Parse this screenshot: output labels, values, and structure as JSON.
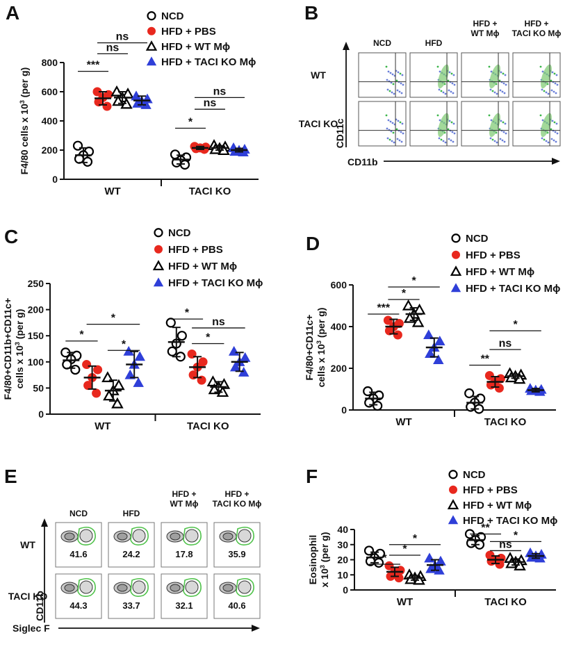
{
  "colors": {
    "ncd": "#000000",
    "pbs": "#e8281e",
    "wt_mphi": "#000000",
    "taci_mphi": "#2f3fd8"
  },
  "legend": {
    "labels": [
      "NCD",
      "HFD + PBS",
      "HFD + WT Mϕ",
      "HFD + TACI KO Mϕ"
    ],
    "markers": [
      "circle-open",
      "circle-filled",
      "triangle-open",
      "triangle-filled"
    ]
  },
  "chart_data": [
    {
      "panel": "A",
      "type": "scatter",
      "ylabel": "F4/80 cells x 10³ (per g)",
      "ylim": [
        0,
        800
      ],
      "yticks": [
        "0",
        "200",
        "400",
        "600",
        "800"
      ],
      "groups": [
        "WT",
        "TACI KO"
      ],
      "series": [
        {
          "group": "WT",
          "condition": "NCD",
          "mean": 165,
          "sd": 50,
          "points": [
            230,
            190,
            165,
            140,
            120
          ]
        },
        {
          "group": "WT",
          "condition": "HFD + PBS",
          "mean": 555,
          "sd": 45,
          "points": [
            600,
            580,
            560,
            530,
            500
          ]
        },
        {
          "group": "WT",
          "condition": "HFD + WT Mϕ",
          "mean": 560,
          "sd": 40,
          "points": [
            600,
            585,
            560,
            535,
            515
          ]
        },
        {
          "group": "WT",
          "condition": "HFD + TACI KO Mϕ",
          "mean": 540,
          "sd": 30,
          "points": [
            570,
            550,
            535,
            520,
            510
          ]
        },
        {
          "group": "TACI KO",
          "condition": "NCD",
          "mean": 135,
          "sd": 30,
          "points": [
            170,
            150,
            130,
            115,
            100
          ]
        },
        {
          "group": "TACI KO",
          "condition": "HFD + PBS",
          "mean": 215,
          "sd": 10,
          "points": [
            225,
            220,
            215,
            210,
            205
          ]
        },
        {
          "group": "TACI KO",
          "condition": "HFD + WT Mϕ",
          "mean": 215,
          "sd": 15,
          "points": [
            232,
            222,
            212,
            205,
            198
          ]
        },
        {
          "group": "TACI KO",
          "condition": "HFD + TACI KO Mϕ",
          "mean": 200,
          "sd": 12,
          "points": [
            215,
            205,
            198,
            190,
            186
          ]
        }
      ],
      "annotations": [
        {
          "group": "WT",
          "from": 0,
          "to": 1,
          "label": "***",
          "y": 740
        },
        {
          "group": "WT",
          "from": 1,
          "to": 2,
          "label": "ns",
          "y": 860
        },
        {
          "group": "WT",
          "from": 1,
          "to": 3,
          "label": "ns",
          "y": 935
        },
        {
          "group": "TACI KO",
          "from": 0,
          "to": 1,
          "label": "*",
          "y": 350
        },
        {
          "group": "TACI KO",
          "from": 1,
          "to": 2,
          "label": "ns",
          "y": 480
        },
        {
          "group": "TACI KO",
          "from": 1,
          "to": 3,
          "label": "ns",
          "y": 560
        }
      ]
    },
    {
      "panel": "C",
      "type": "scatter",
      "ylabel": "F4/80+CD11b+CD11c+ cells x 10³ (per g)",
      "ylim": [
        0,
        250
      ],
      "yticks": [
        "0",
        "50",
        "100",
        "150",
        "200",
        "250"
      ],
      "groups": [
        "WT",
        "TACI KO"
      ],
      "series": [
        {
          "group": "WT",
          "condition": "NCD",
          "mean": 103,
          "sd": 15,
          "points": [
            118,
            112,
            105,
            95,
            85
          ]
        },
        {
          "group": "WT",
          "condition": "HFD + PBS",
          "mean": 70,
          "sd": 22,
          "points": [
            95,
            85,
            70,
            55,
            40
          ]
        },
        {
          "group": "WT",
          "condition": "HFD + WT Mϕ",
          "mean": 45,
          "sd": 20,
          "points": [
            70,
            55,
            45,
            35,
            20
          ]
        },
        {
          "group": "WT",
          "condition": "HFD + TACI KO Mϕ",
          "mean": 95,
          "sd": 25,
          "points": [
            120,
            110,
            95,
            75,
            60
          ]
        },
        {
          "group": "TACI KO",
          "condition": "NCD",
          "mean": 138,
          "sd": 28,
          "points": [
            175,
            150,
            135,
            120,
            110
          ]
        },
        {
          "group": "TACI KO",
          "condition": "HFD + PBS",
          "mean": 90,
          "sd": 20,
          "points": [
            115,
            100,
            90,
            75,
            65
          ]
        },
        {
          "group": "TACI KO",
          "condition": "HFD + WT Mϕ",
          "mean": 52,
          "sd": 10,
          "points": [
            62,
            57,
            52,
            47,
            42
          ]
        },
        {
          "group": "TACI KO",
          "condition": "HFD + TACI KO Mϕ",
          "mean": 100,
          "sd": 18,
          "points": [
            120,
            108,
            100,
            90,
            80
          ]
        }
      ],
      "annotations": [
        {
          "group": "WT",
          "from": 0,
          "to": 1,
          "label": "*",
          "y": 140
        },
        {
          "group": "WT",
          "from": 2,
          "to": 3,
          "label": "*",
          "y": 122
        },
        {
          "group": "WT",
          "from": 1,
          "to": 3,
          "label": "*",
          "y": 172
        },
        {
          "group": "TACI KO",
          "from": 0,
          "to": 1,
          "label": "*",
          "y": 182
        },
        {
          "group": "TACI KO",
          "from": 1,
          "to": 2,
          "label": "*",
          "y": 135
        },
        {
          "group": "TACI KO",
          "from": 1,
          "to": 3,
          "label": "ns",
          "y": 165
        }
      ]
    },
    {
      "panel": "D",
      "type": "scatter",
      "ylabel": "F4/80+CD11c+ cells x 10³ (per g)",
      "ylim": [
        0,
        600
      ],
      "yticks": [
        "0",
        "200",
        "400",
        "600"
      ],
      "groups": [
        "WT",
        "TACI KO"
      ],
      "series": [
        {
          "group": "WT",
          "condition": "NCD",
          "mean": 55,
          "sd": 30,
          "points": [
            90,
            70,
            55,
            35,
            20
          ]
        },
        {
          "group": "WT",
          "condition": "HFD + PBS",
          "mean": 400,
          "sd": 35,
          "points": [
            430,
            415,
            400,
            380,
            360
          ]
        },
        {
          "group": "WT",
          "condition": "HFD + WT Mϕ",
          "mean": 460,
          "sd": 30,
          "points": [
            500,
            480,
            460,
            440,
            420
          ]
        },
        {
          "group": "WT",
          "condition": "HFD + TACI KO Mϕ",
          "mean": 300,
          "sd": 45,
          "points": [
            360,
            330,
            300,
            270,
            240
          ]
        },
        {
          "group": "TACI KO",
          "condition": "NCD",
          "mean": 35,
          "sd": 30,
          "points": [
            80,
            55,
            35,
            15,
            5
          ]
        },
        {
          "group": "TACI KO",
          "condition": "HFD + PBS",
          "mean": 135,
          "sd": 25,
          "points": [
            165,
            150,
            135,
            120,
            105
          ]
        },
        {
          "group": "TACI KO",
          "condition": "HFD + WT Mϕ",
          "mean": 162,
          "sd": 10,
          "points": [
            175,
            168,
            162,
            155,
            148
          ]
        },
        {
          "group": "TACI KO",
          "condition": "HFD + TACI KO Mϕ",
          "mean": 95,
          "sd": 8,
          "points": [
            103,
            98,
            95,
            92,
            88
          ]
        }
      ],
      "annotations": [
        {
          "group": "WT",
          "from": 0,
          "to": 1,
          "label": "***",
          "y": 460
        },
        {
          "group": "WT",
          "from": 1,
          "to": 2,
          "label": "*",
          "y": 530
        },
        {
          "group": "WT",
          "from": 1,
          "to": 3,
          "label": "*",
          "y": 590
        },
        {
          "group": "TACI KO",
          "from": 0,
          "to": 1,
          "label": "**",
          "y": 215
        },
        {
          "group": "TACI KO",
          "from": 1,
          "to": 2,
          "label": "ns",
          "y": 290
        },
        {
          "group": "TACI KO",
          "from": 1,
          "to": 3,
          "label": "*",
          "y": 380
        }
      ]
    },
    {
      "panel": "F",
      "type": "scatter",
      "ylabel": "Eosinophil x 10³ (per g)",
      "ylim": [
        0,
        40
      ],
      "yticks": [
        "0",
        "10",
        "20",
        "30",
        "40"
      ],
      "groups": [
        "WT",
        "TACI KO"
      ],
      "series": [
        {
          "group": "WT",
          "condition": "NCD",
          "mean": 21.5,
          "sd": 3.5,
          "points": [
            26,
            24,
            21,
            19,
            18
          ]
        },
        {
          "group": "WT",
          "condition": "HFD + PBS",
          "mean": 12,
          "sd": 3,
          "points": [
            16,
            13,
            12,
            9,
            8
          ]
        },
        {
          "group": "WT",
          "condition": "HFD + WT Mϕ",
          "mean": 8,
          "sd": 1.5,
          "points": [
            10,
            9,
            8,
            7,
            6.5
          ]
        },
        {
          "group": "WT",
          "condition": "HFD + TACI KO Mϕ",
          "mean": 16.5,
          "sd": 3.5,
          "points": [
            21,
            19,
            16,
            14,
            13
          ]
        },
        {
          "group": "TACI KO",
          "condition": "NCD",
          "mean": 33,
          "sd": 3,
          "points": [
            37,
            35,
            33,
            31,
            30
          ]
        },
        {
          "group": "TACI KO",
          "condition": "HFD + PBS",
          "mean": 20,
          "sd": 2.5,
          "points": [
            23,
            21,
            20,
            19,
            17
          ]
        },
        {
          "group": "TACI KO",
          "condition": "HFD + WT Mϕ",
          "mean": 18.5,
          "sd": 2,
          "points": [
            21,
            19.5,
            18.5,
            17.5,
            16
          ]
        },
        {
          "group": "TACI KO",
          "condition": "HFD + TACI KO Mϕ",
          "mean": 22.5,
          "sd": 1.5,
          "points": [
            24.5,
            23.5,
            22.5,
            21.5,
            21
          ]
        }
      ],
      "annotations": [
        {
          "group": "WT",
          "from": 0,
          "to": 1,
          "label": "*",
          "y": 17
        },
        {
          "group": "WT",
          "from": 1,
          "to": 2,
          "label": "*",
          "y": 23
        },
        {
          "group": "WT",
          "from": 1,
          "to": 3,
          "label": "*",
          "y": 30
        },
        {
          "group": "TACI KO",
          "from": 0,
          "to": 1,
          "label": "**",
          "y": 37
        },
        {
          "group": "TACI KO",
          "from": 1,
          "to": 2,
          "label": "ns",
          "y": 26
        },
        {
          "group": "TACI KO",
          "from": 1,
          "to": 3,
          "label": "*",
          "y": 32
        }
      ]
    }
  ],
  "panel_b": {
    "letter": "B",
    "columns": [
      "NCD",
      "HFD",
      "HFD +\nWT Mϕ",
      "HFD +\nTACI KO Mϕ"
    ],
    "rows": [
      "WT",
      "TACI KO"
    ],
    "x_axis": "CD11b",
    "y_axis": "CD11c"
  },
  "panel_e": {
    "letter": "E",
    "columns": [
      "NCD",
      "HFD",
      "HFD +\nWT Mϕ",
      "HFD +\nTACI KO Mϕ"
    ],
    "rows": [
      "WT",
      "TACI KO"
    ],
    "values": [
      [
        "41.6",
        "24.2",
        "17.8",
        "35.9"
      ],
      [
        "44.3",
        "33.7",
        "32.1",
        "40.6"
      ]
    ],
    "x_axis": "Siglec F",
    "y_axis": "CD11b"
  }
}
